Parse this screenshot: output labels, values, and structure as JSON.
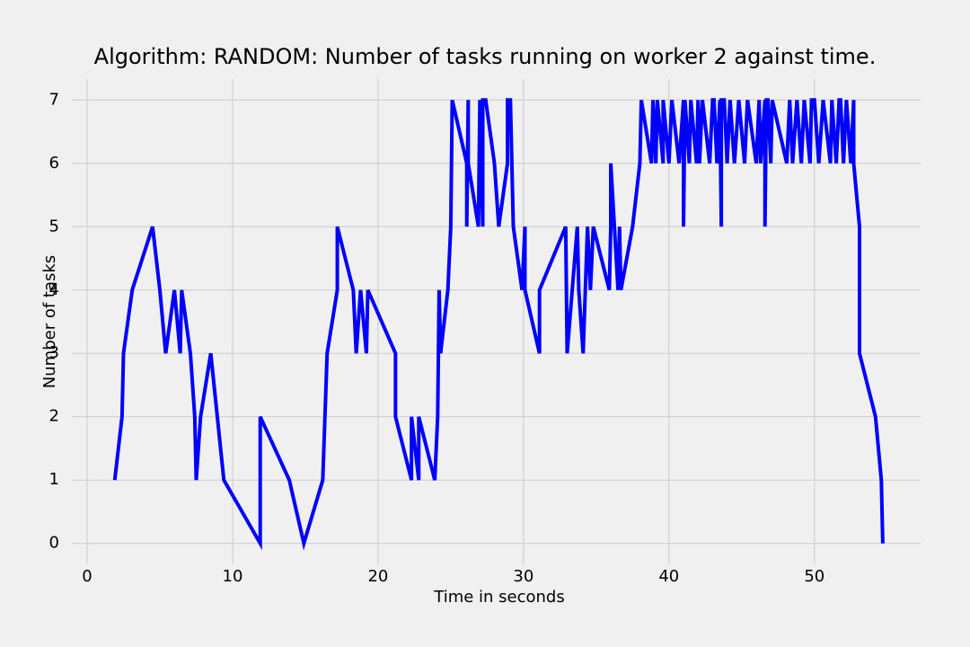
{
  "chart_data": {
    "type": "line",
    "title": "Algorithm: RANDOM: Number of tasks running on worker 2 against time.",
    "xlabel": "Time in seconds",
    "ylabel": "Number of tasks",
    "color": "#0000ff",
    "x": [
      1.9,
      2.4,
      2.5,
      3.1,
      4.5,
      5.0,
      5.4,
      6.0,
      6.4,
      6.5,
      7.1,
      7.4,
      7.5,
      7.8,
      8.5,
      9.4,
      11.9,
      11.9,
      13.9,
      14.9,
      16.2,
      16.5,
      17.2,
      17.2,
      18.3,
      18.5,
      18.8,
      19.2,
      19.3,
      21.2,
      21.2,
      22.3,
      22.3,
      22.8,
      22.8,
      23.9,
      24.1,
      24.2,
      24.3,
      24.8,
      25.0,
      25.1,
      26.1,
      26.1,
      26.2,
      26.2,
      26.9,
      27.0,
      27.2,
      27.2,
      27.4,
      28.0,
      28.3,
      28.9,
      28.9,
      29.1,
      29.3,
      29.9,
      30.1,
      30.1,
      31.1,
      31.1,
      32.9,
      33.0,
      33.7,
      33.8,
      34.1,
      34.4,
      34.6,
      34.8,
      35.9,
      36.0,
      36.0,
      36.5,
      36.6,
      36.7,
      37.5,
      38.0,
      38.1,
      38.8,
      38.9,
      39.1,
      39.2,
      39.6,
      39.6,
      40.0,
      40.2,
      40.7,
      41.0,
      41.0,
      41.1,
      41.4,
      41.5,
      41.9,
      42.0,
      42.1,
      42.3,
      42.8,
      43.0,
      43.1,
      43.3,
      43.5,
      43.6,
      43.6,
      43.8,
      44.0,
      44.2,
      44.5,
      44.8,
      45.2,
      45.4,
      46.0,
      46.2,
      46.3,
      46.6,
      46.6,
      46.7,
      46.8,
      47.0,
      47.1,
      48.1,
      48.3,
      48.5,
      48.8,
      49.1,
      49.3,
      49.7,
      49.8,
      50.0,
      50.3,
      50.6,
      51.1,
      51.2,
      51.5,
      51.7,
      51.8,
      52.0,
      52.2,
      52.5,
      52.7,
      52.7,
      53.1,
      53.1,
      53.1,
      54.2,
      54.6,
      54.7
    ],
    "values": [
      1,
      2,
      3,
      4,
      5,
      4,
      3,
      4,
      3,
      4,
      3,
      2,
      1,
      2,
      3,
      1,
      0,
      2,
      1,
      0,
      1,
      3,
      4,
      5,
      4,
      3,
      4,
      3,
      4,
      3,
      2,
      1,
      2,
      1,
      2,
      1,
      2,
      4,
      3,
      4,
      5,
      7,
      6,
      5,
      7,
      6,
      5,
      7,
      5,
      7,
      7,
      6,
      5,
      6,
      7,
      7,
      5,
      4,
      5,
      4,
      3,
      4,
      5,
      3,
      5,
      4,
      3,
      5,
      4,
      5,
      4,
      5,
      6,
      4,
      5,
      4,
      5,
      6,
      7,
      6,
      7,
      6,
      7,
      6,
      7,
      6,
      7,
      6,
      7,
      5,
      7,
      6,
      7,
      6,
      7,
      6,
      7,
      6,
      7,
      7,
      6,
      7,
      5,
      7,
      7,
      6,
      7,
      6,
      7,
      6,
      7,
      6,
      7,
      6,
      7,
      5,
      7,
      7,
      6,
      7,
      6,
      7,
      6,
      7,
      6,
      7,
      6,
      7,
      7,
      6,
      7,
      6,
      7,
      6,
      7,
      7,
      6,
      7,
      6,
      7,
      6,
      5,
      4,
      3,
      2,
      1,
      0
    ],
    "xlim": [
      -1.05,
      57.3
    ],
    "ylim": [
      -0.33,
      7.33
    ],
    "xticks": [
      0,
      10,
      20,
      30,
      40,
      50
    ],
    "yticks": [
      0,
      1,
      2,
      3,
      4,
      5,
      6,
      7
    ],
    "grid": true
  }
}
